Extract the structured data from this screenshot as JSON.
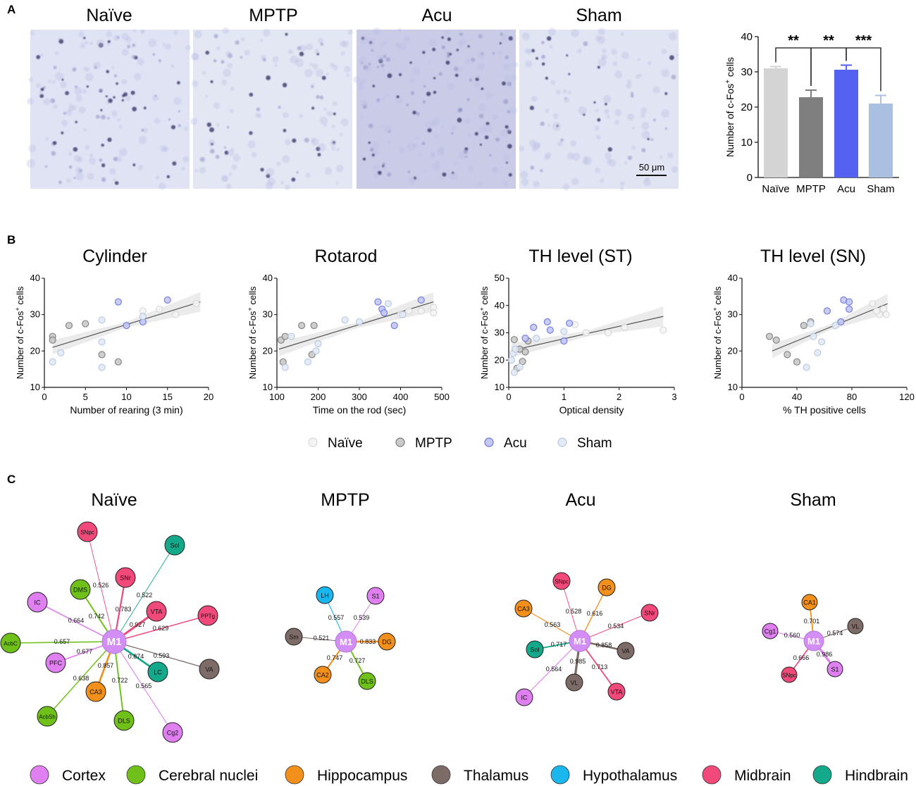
{
  "panel_labels": [
    "A",
    "B",
    "C"
  ],
  "panel_a": {
    "image_titles": [
      "Naïve",
      "MPTP",
      "Acu",
      "Sham"
    ],
    "scale_bar": "50 μm",
    "stain_shades": [
      "#dfe3f4",
      "#e3e6f3",
      "#c9cbe7",
      "#e0e4f3"
    ]
  },
  "chart_data": [
    {
      "type": "bar",
      "title": "",
      "ylabel": "Number of c-Fos⁺ cells",
      "xlabel": "",
      "ylim": [
        0,
        40
      ],
      "yticks": [
        0,
        10,
        20,
        30,
        40
      ],
      "categories": [
        "Naïve",
        "MPTP",
        "Acu",
        "Sham"
      ],
      "values": [
        31,
        22.8,
        30.6,
        21
      ],
      "errors": [
        0.5,
        2,
        1.3,
        2.3
      ],
      "colors": [
        "#d4d4d4",
        "#7f7f7f",
        "#5561f0",
        "#a9c0e0"
      ],
      "significance": [
        {
          "pair": [
            0,
            1
          ],
          "label": "**"
        },
        {
          "pair": [
            1,
            2
          ],
          "label": "**"
        },
        {
          "pair": [
            2,
            3
          ],
          "label": "***"
        }
      ]
    },
    {
      "type": "scatter",
      "title": "Cylinder",
      "xlabel": "Number of rearing (3 min)",
      "ylabel": "Number of c-Fos⁺ cells",
      "xlim": [
        0,
        20
      ],
      "ylim": [
        10,
        40
      ],
      "xticks": [
        0,
        5,
        10,
        15,
        20
      ],
      "yticks": [
        10,
        20,
        30,
        40
      ],
      "fit": [
        [
          1,
          21
        ],
        [
          19,
          33.5
        ]
      ],
      "points": {
        "Naïve": [
          [
            12,
            31
          ],
          [
            14,
            31.5
          ],
          [
            16,
            30
          ],
          [
            18.5,
            33
          ]
        ],
        "MPTP": [
          [
            1,
            24
          ],
          [
            3,
            27
          ],
          [
            5,
            27.5
          ],
          [
            7,
            19
          ],
          [
            1,
            23
          ],
          [
            9,
            17
          ]
        ],
        "Acu": [
          [
            9,
            33.5
          ],
          [
            10,
            27
          ],
          [
            12,
            28
          ],
          [
            15,
            34
          ]
        ],
        "Sham": [
          [
            1,
            17
          ],
          [
            2,
            19.5
          ],
          [
            7,
            15.5
          ],
          [
            7,
            22.5
          ],
          [
            7,
            28.5
          ],
          [
            12,
            29.5
          ]
        ]
      }
    },
    {
      "type": "scatter",
      "title": "Rotarod",
      "xlabel": "Time on the rod (sec)",
      "ylabel": "Number of c-Fos⁺ cells",
      "xlim": [
        100,
        500
      ],
      "ylim": [
        10,
        40
      ],
      "xticks": [
        100,
        200,
        300,
        400,
        500
      ],
      "yticks": [
        10,
        20,
        30,
        40
      ],
      "fit": [
        [
          105,
          20.5
        ],
        [
          480,
          33.5
        ]
      ],
      "points": {
        "Naïve": [
          [
            400,
            30
          ],
          [
            420,
            31
          ],
          [
            480,
            32
          ],
          [
            480,
            30.5
          ],
          [
            450,
            31
          ]
        ],
        "MPTP": [
          [
            110,
            23
          ],
          [
            115,
            17
          ],
          [
            160,
            27
          ],
          [
            185,
            19
          ],
          [
            190,
            27
          ],
          [
            120,
            24
          ]
        ],
        "Acu": [
          [
            345,
            33.5
          ],
          [
            355,
            31.5
          ],
          [
            360,
            30.5
          ],
          [
            385,
            27
          ],
          [
            450,
            34
          ]
        ],
        "Sham": [
          [
            120,
            15.5
          ],
          [
            135,
            24
          ],
          [
            175,
            17
          ],
          [
            200,
            22
          ],
          [
            195,
            20
          ],
          [
            265,
            28.5
          ],
          [
            300,
            28
          ],
          [
            370,
            33
          ],
          [
            405,
            30
          ]
        ]
      }
    },
    {
      "type": "scatter",
      "title": "TH level (ST)",
      "xlabel": "Optical density",
      "ylabel": "Number of c-Fos⁺ cells",
      "xlim": [
        0,
        3
      ],
      "ylim": [
        10,
        50
      ],
      "xticks": [
        0,
        1,
        2,
        3
      ],
      "yticks": [
        10,
        20,
        30,
        40,
        50
      ],
      "fit": [
        [
          0.05,
          23.5
        ],
        [
          2.8,
          36
        ]
      ],
      "points": {
        "Naïve": [
          [
            1.2,
            33
          ],
          [
            1.4,
            30
          ],
          [
            1.8,
            30
          ],
          [
            2.1,
            32
          ],
          [
            2.8,
            31
          ]
        ],
        "MPTP": [
          [
            0.1,
            27.5
          ],
          [
            0.15,
            17
          ],
          [
            0.2,
            24
          ],
          [
            0.25,
            19.5
          ],
          [
            0.3,
            23
          ],
          [
            0.35,
            27
          ]
        ],
        "Acu": [
          [
            0.45,
            32
          ],
          [
            0.7,
            34
          ],
          [
            0.75,
            31
          ],
          [
            1.0,
            27
          ],
          [
            1.1,
            33.5
          ],
          [
            0.3,
            28
          ]
        ],
        "Sham": [
          [
            0.05,
            20
          ],
          [
            0.08,
            22.5
          ],
          [
            0.1,
            15.5
          ],
          [
            0.12,
            24
          ],
          [
            0.2,
            17.5
          ],
          [
            1.0,
            30.5
          ],
          [
            0.5,
            28
          ]
        ]
      }
    },
    {
      "type": "scatter",
      "title": "TH level (SN)",
      "xlabel": "% TH positive cells",
      "ylabel": "Number of c-Fos⁺ cells",
      "xlim": [
        0,
        120
      ],
      "ylim": [
        10,
        40
      ],
      "xticks": [
        0,
        40,
        80,
        120
      ],
      "yticks": [
        10,
        20,
        30,
        40
      ],
      "fit": [
        [
          22,
          20
        ],
        [
          106,
          33
        ]
      ],
      "points": {
        "Naïve": [
          [
            95,
            33
          ],
          [
            100,
            30
          ],
          [
            103,
            31.5
          ],
          [
            105,
            30
          ],
          [
            98,
            31
          ]
        ],
        "MPTP": [
          [
            20,
            24
          ],
          [
            25,
            23
          ],
          [
            33,
            19
          ],
          [
            40,
            17
          ],
          [
            45,
            27
          ],
          [
            50,
            28
          ]
        ],
        "Acu": [
          [
            62,
            31
          ],
          [
            72,
            28
          ],
          [
            74,
            34
          ],
          [
            78,
            33.5
          ],
          [
            78,
            31.5
          ]
        ],
        "Sham": [
          [
            47,
            15.5
          ],
          [
            52,
            24
          ],
          [
            55,
            19.5
          ],
          [
            58,
            22.5
          ],
          [
            68,
            27
          ],
          [
            50,
            27.5
          ]
        ]
      }
    }
  ],
  "scatter_legend": [
    {
      "label": "Naïve",
      "fill": "#f4f4f4",
      "stroke": "#d6d6d6"
    },
    {
      "label": "MPTP",
      "fill": "#c9c9c9",
      "stroke": "#7a7a7a"
    },
    {
      "label": "Acu",
      "fill": "#c4c8f3",
      "stroke": "#6a72e0"
    },
    {
      "label": "Sham",
      "fill": "#e4ebf5",
      "stroke": "#b5c6df"
    }
  ],
  "region_colors": {
    "Cortex": "#e07fef",
    "Cerebral nuclei": "#6fc11a",
    "Hippocampus": "#f38f1b",
    "Thalamus": "#7d6b68",
    "Hypothalamus": "#1ab7ee",
    "Midbrain": "#f0497a",
    "Hindbrain": "#14a98a",
    "Hub": "#d28ef5"
  },
  "region_legend": [
    "Cortex",
    "Cerebral nuclei",
    "Hippocampus",
    "Thalamus",
    "Hypothalamus",
    "Midbrain",
    "Hindbrain"
  ],
  "networks": [
    {
      "title": "Naïve",
      "hub": "M1",
      "nodes": [
        {
          "label": "SNpc",
          "region": "Midbrain",
          "r": "0.526"
        },
        {
          "label": "Sol",
          "region": "Hindbrain",
          "r": "0.522"
        },
        {
          "label": "SNr",
          "region": "Midbrain",
          "r": "0.783"
        },
        {
          "label": "DMS",
          "region": "Cerebral nuclei",
          "r": "0.742"
        },
        {
          "label": "IC",
          "region": "Cortex",
          "r": "0.664"
        },
        {
          "label": "VTA",
          "region": "Midbrain",
          "r": "0.927"
        },
        {
          "label": "PPTg",
          "region": "Midbrain",
          "r": "0.629"
        },
        {
          "label": "AcbC",
          "region": "Cerebral nuclei",
          "r": "0.657"
        },
        {
          "label": "PFC",
          "region": "Cortex",
          "r": "0.677"
        },
        {
          "label": "LC",
          "region": "Hindbrain",
          "r": "0.874"
        },
        {
          "label": "VA",
          "region": "Thalamus",
          "r": "0.593"
        },
        {
          "label": "CA3",
          "region": "Hippocampus",
          "r": "0.857"
        },
        {
          "label": "AcbSh",
          "region": "Cerebral nuclei",
          "r": "0.638"
        },
        {
          "label": "DLS",
          "region": "Cerebral nuclei",
          "r": "0.722"
        },
        {
          "label": "Cg2",
          "region": "Cortex",
          "r": "0.565"
        }
      ]
    },
    {
      "title": "MPTP",
      "hub": "M1",
      "nodes": [
        {
          "label": "LH",
          "region": "Hypothalamus",
          "r": "0.557"
        },
        {
          "label": "S1",
          "region": "Cortex",
          "r": "0.539"
        },
        {
          "label": "Sm",
          "region": "Thalamus",
          "r": "0.521"
        },
        {
          "label": "DG",
          "region": "Hippocampus",
          "r": "0.833"
        },
        {
          "label": "CA2",
          "region": "Hippocampus",
          "r": "0.747"
        },
        {
          "label": "DLS",
          "region": "Cerebral nuclei",
          "r": "0.727"
        }
      ]
    },
    {
      "title": "Acu",
      "hub": "M1",
      "nodes": [
        {
          "label": "SNpc",
          "region": "Midbrain",
          "r": "0.528"
        },
        {
          "label": "DG",
          "region": "Hippocampus",
          "r": "0.616"
        },
        {
          "label": "CA3",
          "region": "Hippocampus",
          "r": "0.563"
        },
        {
          "label": "SNr",
          "region": "Midbrain",
          "r": "0.534"
        },
        {
          "label": "Sol",
          "region": "Hindbrain",
          "r": "0.717"
        },
        {
          "label": "VA",
          "region": "Thalamus",
          "r": "0.858"
        },
        {
          "label": "VL",
          "region": "Thalamus",
          "r": "0.985"
        },
        {
          "label": "IC",
          "region": "Cortex",
          "r": "0.564"
        },
        {
          "label": "VTA",
          "region": "Midbrain",
          "r": "0.713"
        }
      ]
    },
    {
      "title": "Sham",
      "hub": "M1",
      "nodes": [
        {
          "label": "CA1",
          "region": "Hippocampus",
          "r": "0.701"
        },
        {
          "label": "Cg1",
          "region": "Cortex",
          "r": "0.560"
        },
        {
          "label": "VL",
          "region": "Thalamus",
          "r": "0.574"
        },
        {
          "label": "SNpc",
          "region": "Midbrain",
          "r": "0.666"
        },
        {
          "label": "S1",
          "region": "Cortex",
          "r": "0.986"
        }
      ]
    }
  ]
}
